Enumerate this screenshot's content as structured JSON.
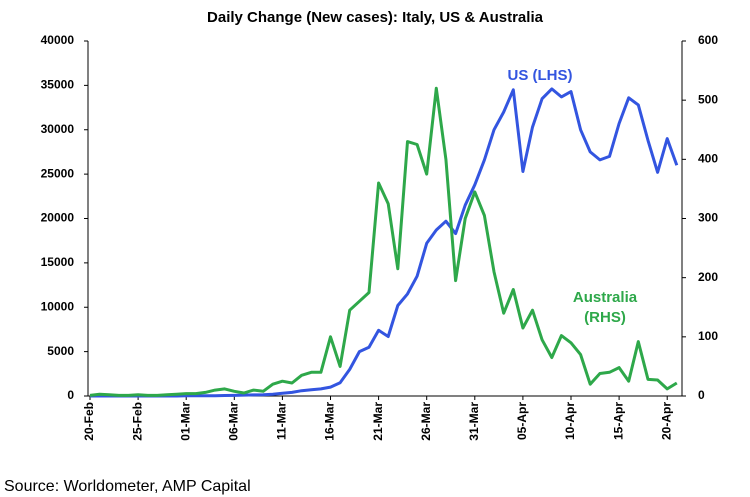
{
  "chart_data": {
    "type": "line",
    "title": "Daily Change (New cases): Italy, US & Australia",
    "source": "Source: Worldometer, AMP Capital",
    "categories": [
      "20-Feb",
      null,
      null,
      null,
      null,
      "25-Feb",
      null,
      null,
      null,
      null,
      "01-Mar",
      null,
      null,
      null,
      null,
      "06-Mar",
      null,
      null,
      null,
      null,
      "11-Mar",
      null,
      null,
      null,
      null,
      "16-Mar",
      null,
      null,
      null,
      null,
      "21-Mar",
      null,
      null,
      null,
      null,
      "26-Mar",
      null,
      null,
      null,
      null,
      "31-Mar",
      null,
      null,
      null,
      null,
      "05-Apr",
      null,
      null,
      null,
      null,
      "10-Apr",
      null,
      null,
      null,
      null,
      "15-Apr",
      null,
      null,
      null,
      null,
      "20-Apr",
      null
    ],
    "series": [
      {
        "name": "US (LHS)",
        "color": "#3355e0",
        "axis": "y",
        "values": [
          0,
          0,
          0,
          0,
          0,
          0,
          0,
          0,
          0,
          0,
          20,
          20,
          30,
          30,
          60,
          70,
          100,
          120,
          150,
          200,
          300,
          400,
          600,
          700,
          800,
          1000,
          1500,
          3000,
          5000,
          5500,
          7400,
          6700,
          10200,
          11500,
          13500,
          17200,
          18700,
          19700,
          18300,
          21500,
          23800,
          26600,
          30000,
          32000,
          34500,
          25300,
          30300,
          33500,
          34600,
          33700,
          34300,
          30000,
          27500,
          26600,
          27000,
          30700,
          33600,
          32800,
          28800,
          25200,
          29000,
          26000
        ]
      },
      {
        "name": "Australia (RHS)",
        "color": "#2ea84a",
        "axis": "y2",
        "values": [
          1,
          3,
          2,
          1,
          1,
          2,
          1,
          1,
          2,
          3,
          4,
          4,
          6,
          10,
          12,
          8,
          5,
          10,
          8,
          20,
          25,
          22,
          35,
          40,
          40,
          100,
          50,
          145,
          160,
          175,
          360,
          325,
          215,
          430,
          425,
          375,
          520,
          400,
          195,
          300,
          345,
          305,
          210,
          140,
          180,
          115,
          145,
          95,
          65,
          102,
          90,
          70,
          20,
          38,
          40,
          48,
          25,
          92,
          28,
          27,
          12,
          22
        ]
      }
    ],
    "ylim": [
      0,
      40000
    ],
    "yticks": [
      0,
      5000,
      10000,
      15000,
      20000,
      25000,
      30000,
      35000,
      40000
    ],
    "y2lim": [
      0,
      600
    ],
    "y2ticks": [
      0,
      100,
      200,
      300,
      400,
      500,
      600
    ]
  }
}
